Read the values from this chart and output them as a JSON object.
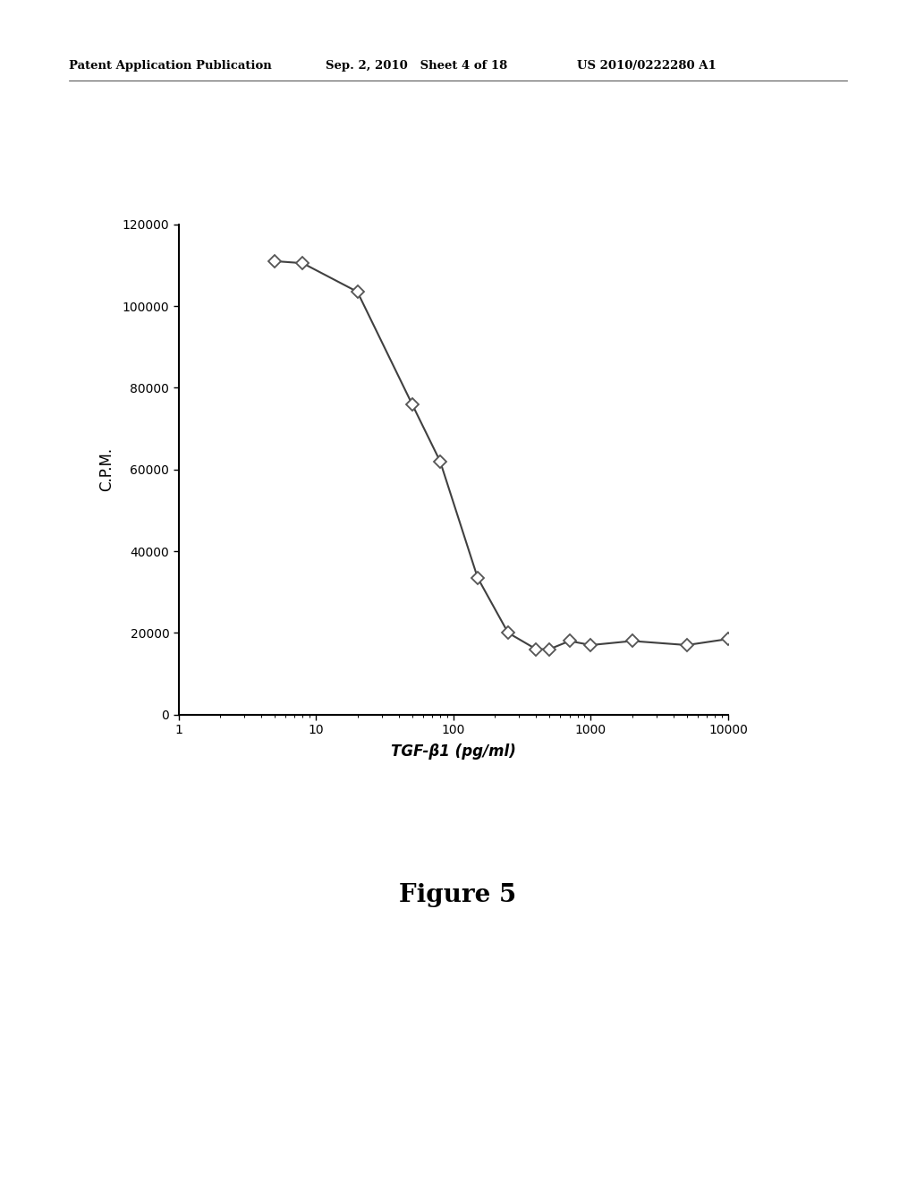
{
  "x": [
    5,
    8,
    20,
    50,
    80,
    150,
    250,
    400,
    500,
    700,
    1000,
    2000,
    5000,
    10000
  ],
  "y": [
    111000,
    110500,
    103500,
    76000,
    62000,
    33500,
    20000,
    16000,
    16000,
    18000,
    17000,
    18000,
    17000,
    18500
  ],
  "xlabel": "TGF-β1 (pg/ml)",
  "ylabel": "C.P.M.",
  "xlim": [
    1,
    10000
  ],
  "ylim": [
    0,
    120000
  ],
  "yticks": [
    0,
    20000,
    40000,
    60000,
    80000,
    100000,
    120000
  ],
  "xtick_labels": [
    "1",
    "10",
    "100",
    "1000",
    "10000"
  ],
  "xtick_positions": [
    1,
    10,
    100,
    1000,
    10000
  ],
  "figure_caption": "Figure 5",
  "header_left": "Patent Application Publication",
  "header_mid": "Sep. 2, 2010   Sheet 4 of 18",
  "header_right": "US 2010/0222280 A1",
  "line_color": "#404040",
  "marker_color": "#555555",
  "marker_face": "#ffffff",
  "bg_color": "#ffffff",
  "axis_fontsize": 12,
  "tick_fontsize": 10,
  "caption_fontsize": 20,
  "header_fontsize": 9.5
}
